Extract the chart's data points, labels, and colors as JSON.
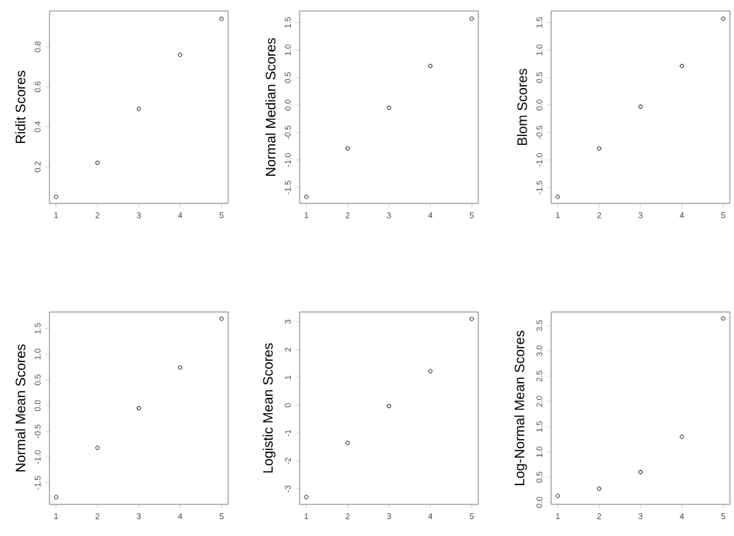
{
  "chart_data": [
    {
      "type": "scatter",
      "ylabel": "Ridit Scores",
      "x": [
        1,
        2,
        3,
        4,
        5
      ],
      "values": [
        0.05,
        0.22,
        0.49,
        0.76,
        0.94
      ],
      "color": "#000000",
      "marker": "circle",
      "xlim": [
        0.84,
        5.16
      ],
      "ylim": [
        0.017,
        0.979
      ],
      "xticks": [
        1,
        2,
        3,
        4,
        5
      ],
      "yticks": [
        0.2,
        0.4,
        0.6,
        0.8
      ]
    },
    {
      "type": "scatter",
      "ylabel": "Normal Median Scores",
      "x": [
        1,
        2,
        3,
        4,
        5
      ],
      "values": [
        -1.67,
        -0.79,
        -0.05,
        0.71,
        1.57
      ],
      "color": "#000000",
      "marker": "circle",
      "xlim": [
        0.84,
        5.16
      ],
      "ylim": [
        -1.79,
        1.71
      ],
      "xticks": [
        1,
        2,
        3,
        4,
        5
      ],
      "yticks": [
        -1.5,
        {
          "value": -1,
          "label": "-1.0"
        },
        -0.5,
        {
          "value": 0,
          "label": "0.0"
        },
        0.5,
        {
          "value": 1,
          "label": "1.0"
        },
        1.5
      ]
    },
    {
      "type": "scatter",
      "ylabel": "Blom Scores",
      "x": [
        1,
        2,
        3,
        4,
        5
      ],
      "values": [
        -1.67,
        -0.79,
        -0.03,
        0.71,
        1.57
      ],
      "color": "#000000",
      "marker": "circle",
      "xlim": [
        0.84,
        5.16
      ],
      "ylim": [
        -1.79,
        1.71
      ],
      "xticks": [
        1,
        2,
        3,
        4,
        5
      ],
      "yticks": [
        -1.5,
        {
          "value": -1,
          "label": "-1.0"
        },
        -0.5,
        {
          "value": 0,
          "label": "0.0"
        },
        0.5,
        {
          "value": 1,
          "label": "1.0"
        },
        1.5
      ]
    },
    {
      "type": "scatter",
      "ylabel": "Normal Mean Scores",
      "x": [
        1,
        2,
        3,
        4,
        5
      ],
      "values": [
        -1.78,
        -0.82,
        -0.05,
        0.74,
        1.69
      ],
      "color": "#000000",
      "marker": "circle",
      "xlim": [
        0.84,
        5.16
      ],
      "ylim": [
        -1.92,
        1.82
      ],
      "xticks": [
        1,
        2,
        3,
        4,
        5
      ],
      "yticks": [
        -1.5,
        {
          "value": -1,
          "label": "-1.0"
        },
        -0.5,
        {
          "value": 0,
          "label": "0.0"
        },
        0.5,
        {
          "value": 1,
          "label": "1.0"
        },
        1.5
      ]
    },
    {
      "type": "scatter",
      "ylabel": "Logistic Mean Scores",
      "x": [
        1,
        2,
        3,
        4,
        5
      ],
      "values": [
        -3.3,
        -1.35,
        -0.03,
        1.22,
        3.1
      ],
      "color": "#000000",
      "marker": "circle",
      "xlim": [
        0.84,
        5.16
      ],
      "ylim": [
        -3.56,
        3.35
      ],
      "xticks": [
        1,
        2,
        3,
        4,
        5
      ],
      "yticks": [
        -3,
        -2,
        -1,
        0,
        1,
        2,
        3
      ]
    },
    {
      "type": "scatter",
      "ylabel": "Log-Normal Mean Scores",
      "x": [
        1,
        2,
        3,
        4,
        5
      ],
      "values": [
        0.13,
        0.27,
        0.6,
        1.3,
        3.64
      ],
      "color": "#000000",
      "marker": "circle",
      "xlim": [
        0.84,
        5.16
      ],
      "ylim": [
        -0.04,
        3.77
      ],
      "xticks": [
        1,
        2,
        3,
        4,
        5
      ],
      "yticks": [
        {
          "value": 0,
          "label": "0.0"
        },
        0.5,
        {
          "value": 1,
          "label": "1.0"
        },
        1.5,
        {
          "value": 2,
          "label": "2.0"
        },
        2.5,
        {
          "value": 3,
          "label": "3.0"
        },
        3.5
      ]
    }
  ]
}
